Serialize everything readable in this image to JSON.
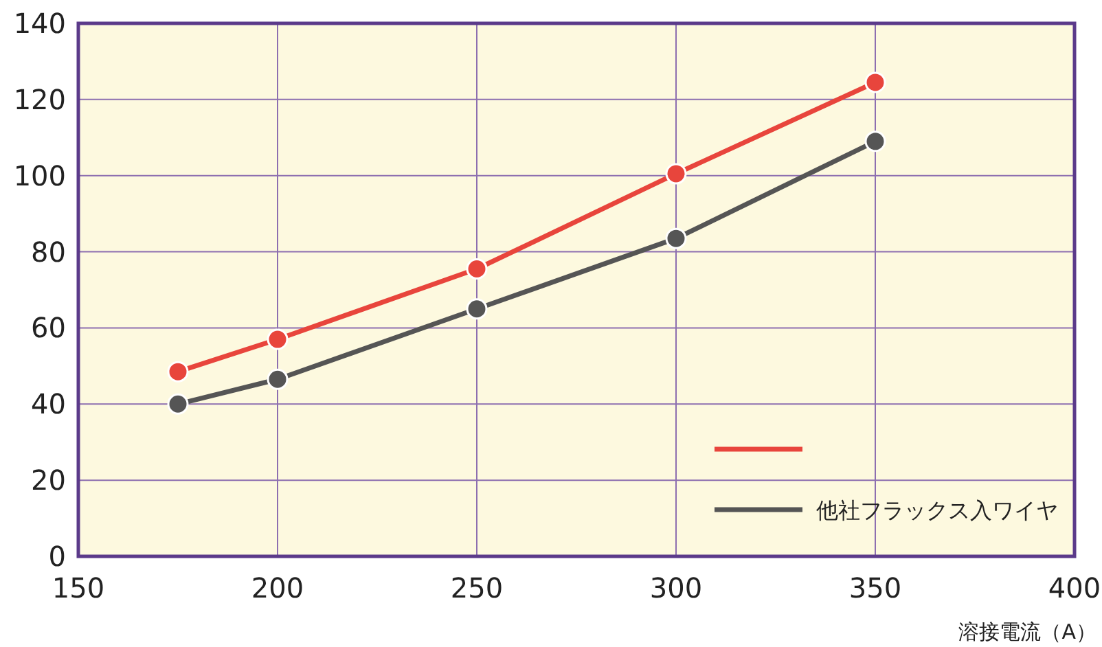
{
  "chart_data": {
    "type": "line",
    "xlabel": "溶接電流（A）",
    "xlim": [
      150,
      400
    ],
    "xticks": [
      150,
      200,
      250,
      300,
      350,
      400
    ],
    "ylim": [
      0,
      140
    ],
    "yticks": [
      0,
      20,
      40,
      60,
      80,
      100,
      120,
      140
    ],
    "grid": true,
    "legend": "bottom right",
    "marker": "circle",
    "series": [
      {
        "color": "#e8453c",
        "x": [
          175,
          200,
          250,
          300,
          350
        ],
        "values": [
          48.5,
          57,
          75.5,
          100.5,
          124.5
        ]
      },
      {
        "name": "他社フラックス入ワイヤ",
        "color": "#555555",
        "x": [
          175,
          200,
          250,
          300,
          350
        ],
        "values": [
          40,
          46.5,
          65,
          83.5,
          109
        ]
      }
    ]
  }
}
